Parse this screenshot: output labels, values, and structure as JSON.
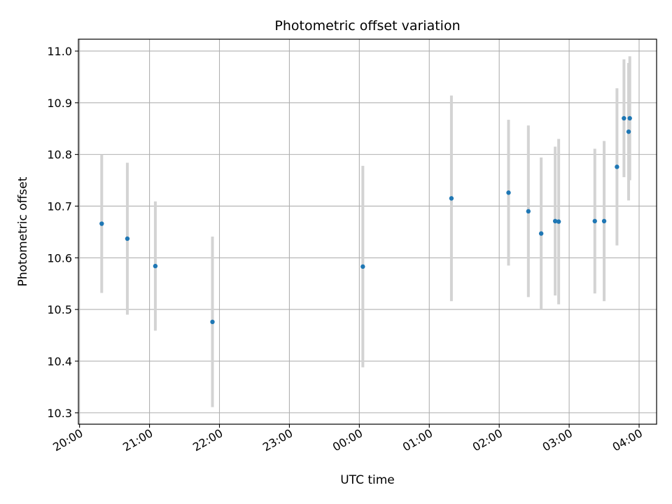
{
  "chart_data": {
    "type": "scatter",
    "title": "Photometric offset variation",
    "xlabel": "UTC time",
    "ylabel": "Photometric offset",
    "x_ticks": [
      "20:00",
      "21:00",
      "22:00",
      "23:00",
      "00:00",
      "01:00",
      "02:00",
      "03:00",
      "04:00"
    ],
    "y_ticks": [
      "10.3",
      "10.4",
      "10.5",
      "10.6",
      "10.7",
      "10.8",
      "10.9",
      "11.0"
    ],
    "xlim": [
      "19:59",
      "04:15"
    ],
    "ylim": [
      10.278,
      11.023
    ],
    "grid": true,
    "marker_color": "#1f77b4",
    "errorbar_color": "#d3d3d3",
    "points": [
      {
        "time": "20:19",
        "y": 10.666,
        "err": 0.134
      },
      {
        "time": "20:41",
        "y": 10.637,
        "err": 0.147
      },
      {
        "time": "21:05",
        "y": 10.584,
        "err": 0.125
      },
      {
        "time": "21:54",
        "y": 10.476,
        "err": 0.165
      },
      {
        "time": "00:03",
        "y": 10.583,
        "err": 0.195
      },
      {
        "time": "01:19",
        "y": 10.715,
        "err": 0.199
      },
      {
        "time": "02:08",
        "y": 10.726,
        "err": 0.141
      },
      {
        "time": "02:25",
        "y": 10.69,
        "err": 0.166
      },
      {
        "time": "02:36",
        "y": 10.647,
        "err": 0.147
      },
      {
        "time": "02:48",
        "y": 10.671,
        "err": 0.144
      },
      {
        "time": "02:51",
        "y": 10.67,
        "err": 0.16
      },
      {
        "time": "03:22",
        "y": 10.671,
        "err": 0.14
      },
      {
        "time": "03:30",
        "y": 10.671,
        "err": 0.155
      },
      {
        "time": "03:41",
        "y": 10.776,
        "err": 0.152
      },
      {
        "time": "03:47",
        "y": 10.87,
        "err": 0.114
      },
      {
        "time": "03:51",
        "y": 10.844,
        "err": 0.133
      },
      {
        "time": "03:52",
        "y": 10.87,
        "err": 0.12
      }
    ]
  }
}
